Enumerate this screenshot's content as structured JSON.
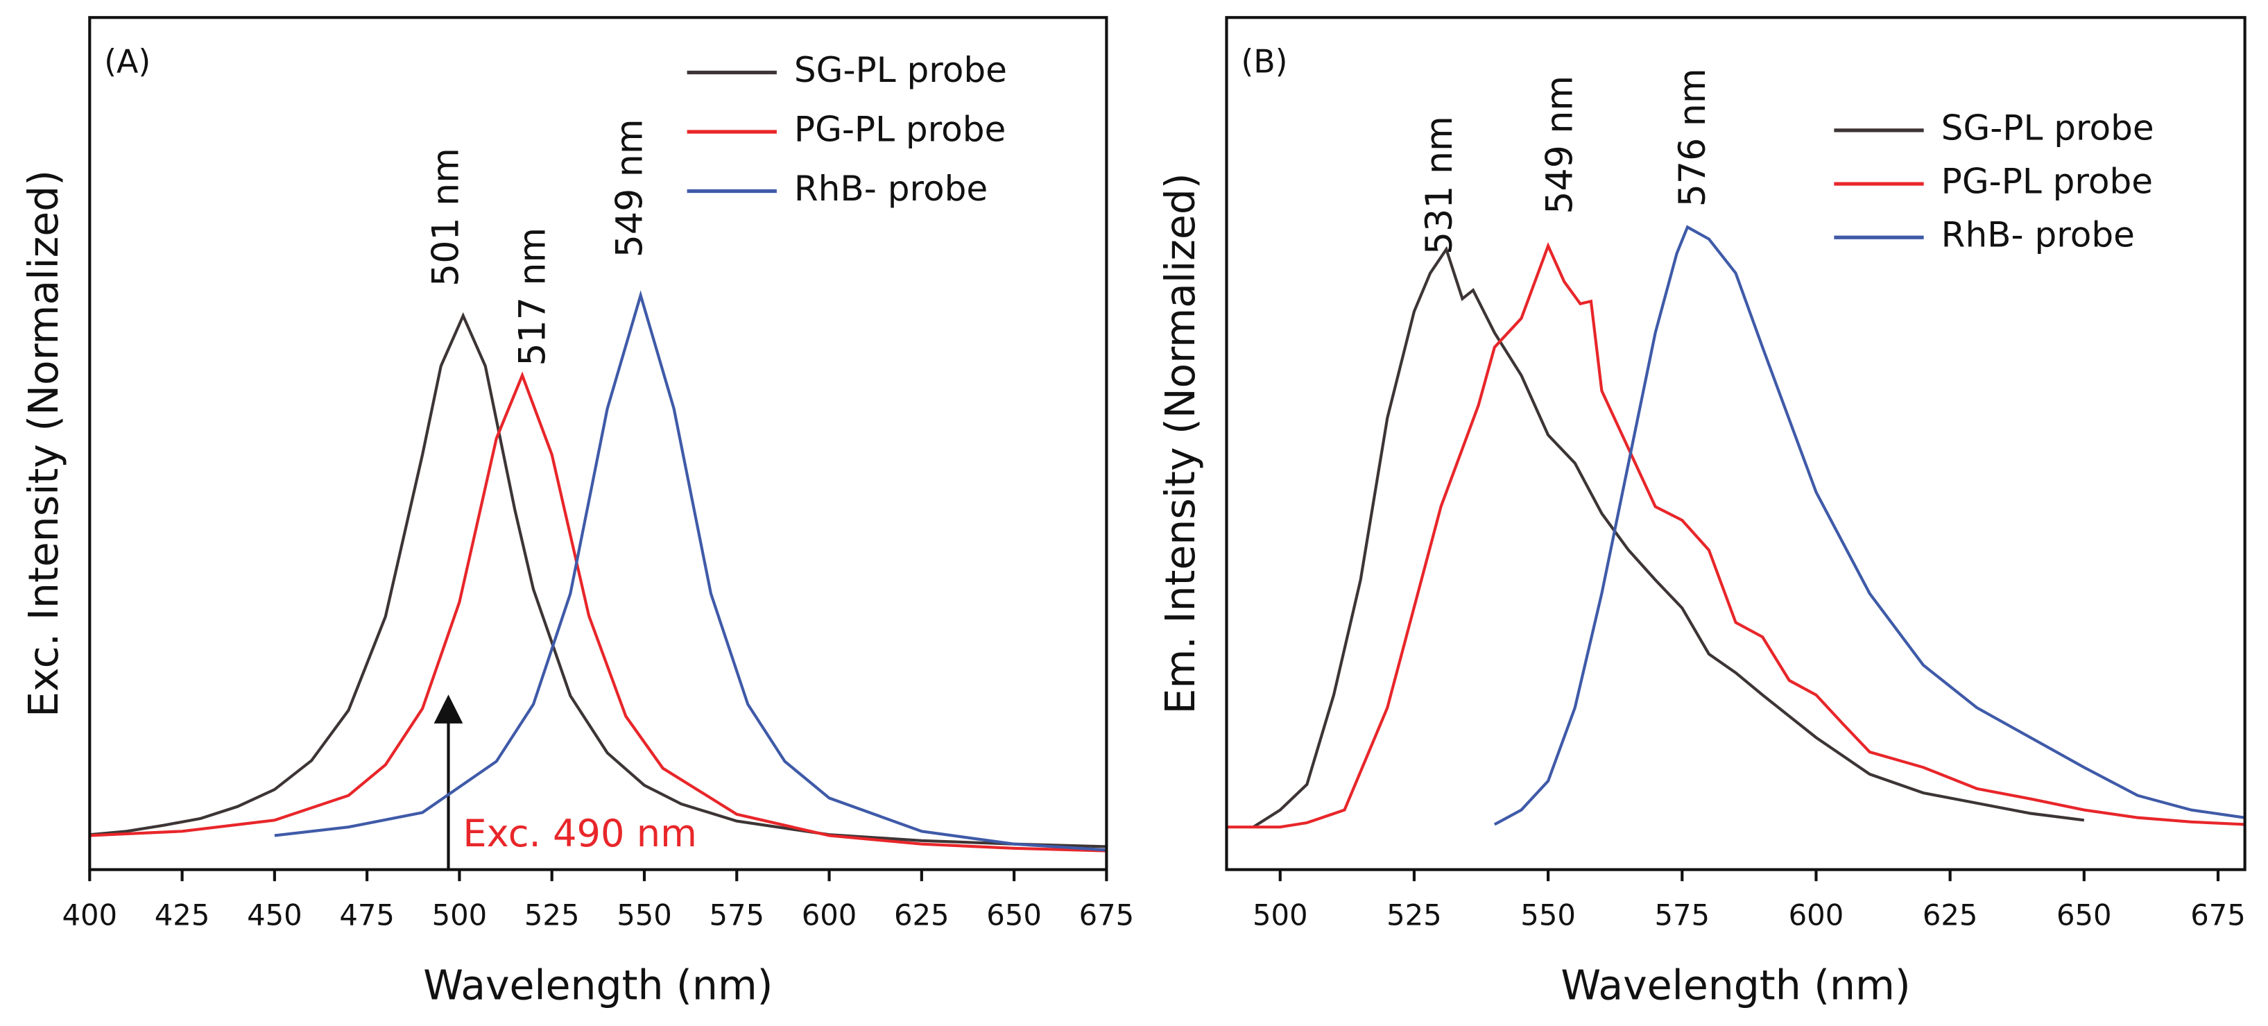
{
  "chart_data": [
    {
      "type": "line",
      "panel_label": "(A)",
      "x_label": "Wavelength (nm)",
      "y_label": "Exc. Intensity (Normalized)",
      "xlim": [
        400,
        675
      ],
      "xticks": [
        400,
        425,
        450,
        475,
        500,
        525,
        550,
        575,
        600,
        625,
        650,
        675
      ],
      "ylim": [
        0,
        1
      ],
      "legend": "upper right",
      "annotations": [
        "501 nm",
        "517 nm",
        "549 nm",
        "Exc. 490 nm"
      ],
      "series": [
        {
          "name": "SG-PL probe",
          "color": "#3d3535",
          "x": [
            400,
            410,
            420,
            430,
            440,
            450,
            460,
            470,
            480,
            490,
            495,
            501,
            507,
            515,
            520,
            530,
            540,
            550,
            560,
            575,
            600,
            625,
            650,
            675
          ],
          "values": [
            0.041,
            0.045,
            0.052,
            0.06,
            0.074,
            0.094,
            0.128,
            0.187,
            0.297,
            0.487,
            0.591,
            0.65,
            0.591,
            0.422,
            0.329,
            0.204,
            0.137,
            0.099,
            0.077,
            0.057,
            0.041,
            0.034,
            0.03,
            0.027
          ]
        },
        {
          "name": "PG-PL probe",
          "color": "#e8262a",
          "x": [
            400,
            425,
            450,
            470,
            480,
            490,
            500,
            510,
            517,
            525,
            535,
            545,
            555,
            575,
            600,
            625,
            650,
            675
          ],
          "values": [
            0.04,
            0.045,
            0.058,
            0.087,
            0.123,
            0.189,
            0.314,
            0.506,
            0.58,
            0.487,
            0.298,
            0.18,
            0.119,
            0.065,
            0.04,
            0.03,
            0.025,
            0.022
          ]
        },
        {
          "name": "RhB- probe",
          "color": "#3f5aa8",
          "x": [
            450,
            470,
            490,
            510,
            520,
            530,
            540,
            549,
            558,
            568,
            578,
            588,
            600,
            625,
            650,
            675
          ],
          "values": [
            0.04,
            0.05,
            0.067,
            0.127,
            0.194,
            0.324,
            0.541,
            0.674,
            0.541,
            0.324,
            0.194,
            0.127,
            0.084,
            0.045,
            0.03,
            0.023
          ]
        }
      ]
    },
    {
      "type": "line",
      "panel_label": "(B)",
      "x_label": "Wavelength (nm)",
      "y_label": "Em. Intensity (Normalized)",
      "xlim": [
        490,
        680
      ],
      "xticks": [
        500,
        525,
        550,
        575,
        600,
        625,
        650,
        675
      ],
      "ylim": [
        0,
        1
      ],
      "legend": "upper right",
      "annotations": [
        "531 nm",
        "549 nm",
        "576 nm"
      ],
      "series": [
        {
          "name": "SG-PL probe",
          "color": "#3d3535",
          "x": [
            495,
            500,
            505,
            510,
            515,
            520,
            525,
            528,
            531,
            534,
            536,
            540,
            545,
            550,
            555,
            560,
            565,
            570,
            575,
            580,
            585,
            590,
            600,
            610,
            620,
            630,
            640,
            650
          ],
          "values": [
            0.05,
            0.07,
            0.1,
            0.205,
            0.34,
            0.53,
            0.655,
            0.7,
            0.728,
            0.67,
            0.68,
            0.63,
            0.58,
            0.51,
            0.477,
            0.418,
            0.375,
            0.34,
            0.307,
            0.253,
            0.231,
            0.205,
            0.155,
            0.112,
            0.09,
            0.078,
            0.066,
            0.058
          ]
        },
        {
          "name": "PG-PL probe",
          "color": "#e8262a",
          "x": [
            490,
            500,
            505,
            512,
            520,
            530,
            537,
            540,
            545,
            550,
            553,
            556,
            558,
            560,
            565,
            570,
            575,
            580,
            585,
            590,
            595,
            600,
            605,
            610,
            620,
            630,
            640,
            650,
            660,
            670,
            680
          ],
          "values": [
            0.05,
            0.05,
            0.055,
            0.07,
            0.19,
            0.426,
            0.545,
            0.613,
            0.647,
            0.732,
            0.69,
            0.664,
            0.667,
            0.562,
            0.494,
            0.426,
            0.41,
            0.375,
            0.29,
            0.273,
            0.222,
            0.205,
            0.171,
            0.138,
            0.12,
            0.095,
            0.083,
            0.07,
            0.061,
            0.056,
            0.053
          ]
        },
        {
          "name": "RhB- probe",
          "color": "#3f5aa8",
          "x": [
            540,
            545,
            550,
            555,
            560,
            565,
            570,
            574,
            576,
            580,
            585,
            590,
            595,
            600,
            610,
            620,
            630,
            640,
            650,
            660,
            670,
            680
          ],
          "values": [
            0.053,
            0.07,
            0.104,
            0.19,
            0.324,
            0.477,
            0.63,
            0.723,
            0.754,
            0.74,
            0.7,
            0.613,
            0.528,
            0.443,
            0.324,
            0.24,
            0.19,
            0.155,
            0.12,
            0.087,
            0.07,
            0.061
          ]
        }
      ]
    }
  ]
}
